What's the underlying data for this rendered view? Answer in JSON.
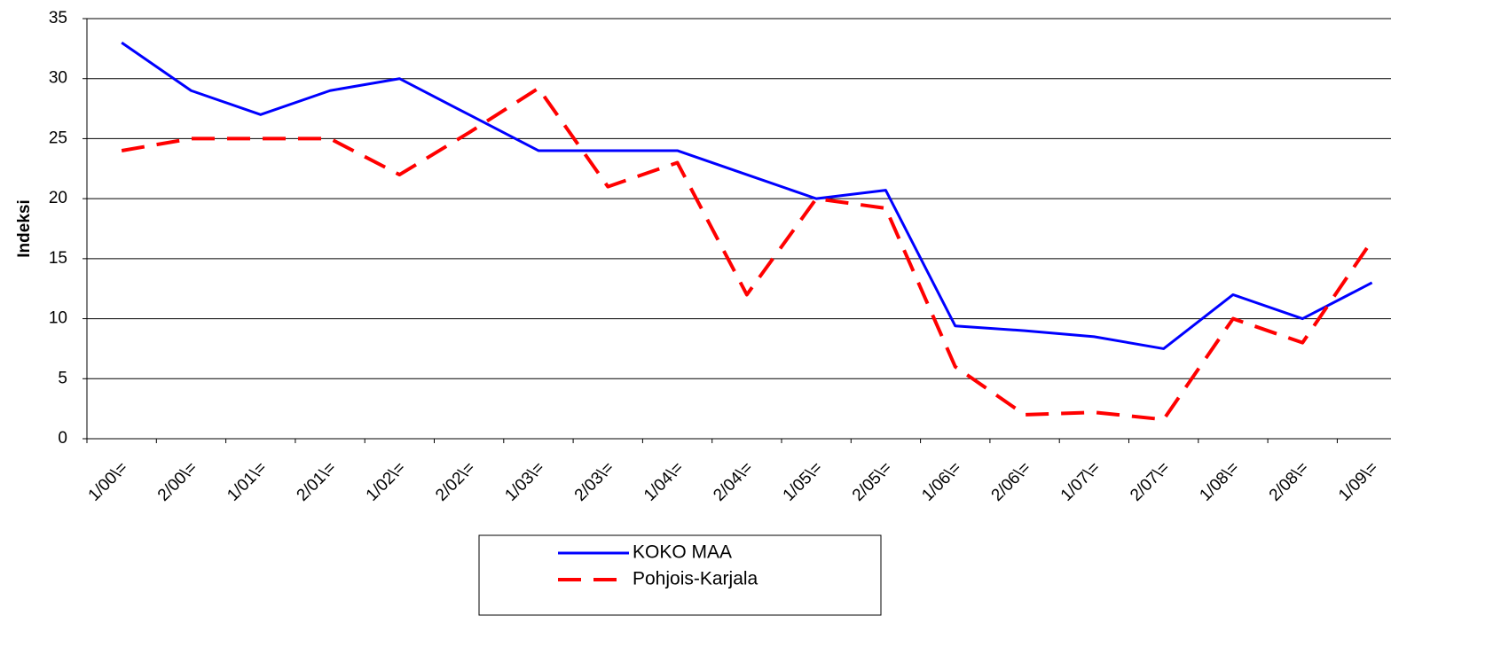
{
  "chart_data": {
    "type": "line",
    "y_label": "Indeksi",
    "categories": [
      "1/00\\=",
      "2/00\\=",
      "1/01\\=",
      "2/01\\=",
      "1/02\\=",
      "2/02\\=",
      "1/03\\=",
      "2/03\\=",
      "1/04\\=",
      "2/04\\=",
      "1/05\\=",
      "2/05\\=",
      "1/06\\=",
      "2/06\\=",
      "1/07\\=",
      "2/07\\=",
      "1/08\\=",
      "2/08\\=",
      "1/09\\="
    ],
    "series": [
      {
        "name": "KOKO MAA",
        "color": "#0000ff",
        "line_style": "solid",
        "values": [
          33,
          29,
          27,
          29,
          30,
          27,
          24,
          24,
          24,
          22,
          20,
          20.7,
          9.4,
          9,
          8.5,
          7.5,
          12,
          10,
          13
        ]
      },
      {
        "name": "Pohjois-Karjala",
        "color": "#ff0000",
        "line_style": "dashed",
        "values": [
          24,
          25,
          25,
          25,
          22,
          25.5,
          29.2,
          21,
          23,
          12,
          20,
          19.2,
          6,
          2,
          2.2,
          1.6,
          10,
          8,
          16.5
        ]
      }
    ],
    "ylim": [
      0,
      35
    ],
    "yticks": [
      0,
      5,
      10,
      15,
      20,
      25,
      30,
      35
    ],
    "grid": true,
    "legend": "bottom"
  }
}
